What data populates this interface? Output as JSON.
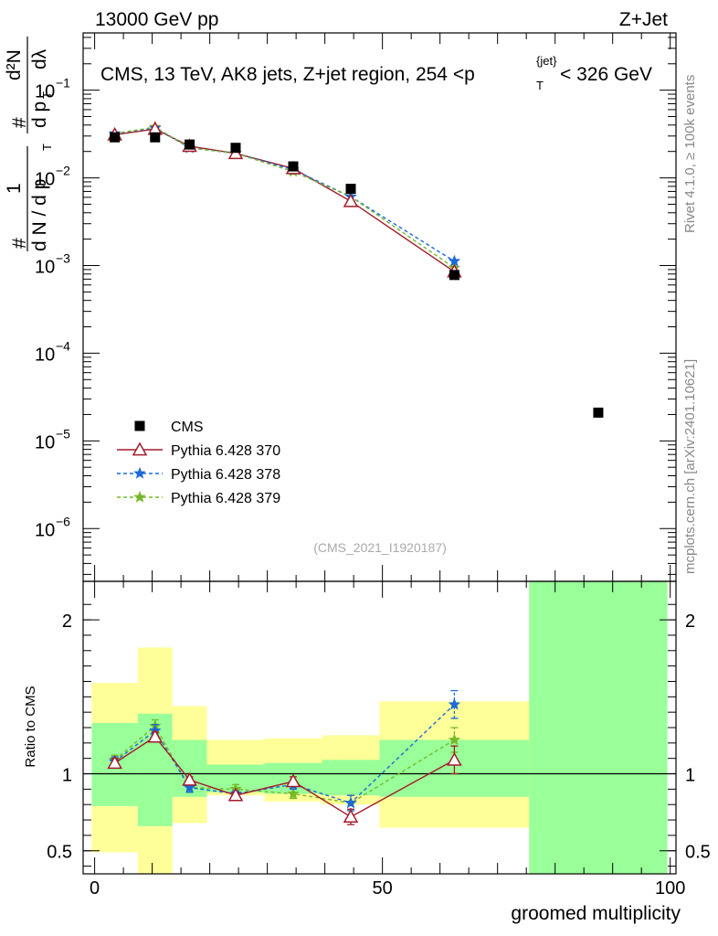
{
  "header": {
    "left": "13000 GeV pp",
    "right": "Z+Jet"
  },
  "side_text": {
    "rivet": "Rivet 4.1.0, ≥ 100k events",
    "mcplots": "mcplots.cern.ch [arXiv:2401.10621]"
  },
  "chart_data": [
    {
      "type": "scatter",
      "panel": "main",
      "title": "CMS, 13 TeV, AK8 jets, Z+jet region, 254 <p_T^{jet}< 326 GeV",
      "title_parts": {
        "main": "CMS, 13 TeV, AK8 jets, Z+jet region, 254 <p",
        "sub": "T",
        "sup": "{jet}",
        "tail": "< 326 GeV"
      },
      "ylabel": "1/dN/dpT dN/dpT dλ",
      "ylabel_parts": {
        "hash": "#",
        "one": "1",
        "denom": "d N / d p",
        "denom_sub": "T",
        "num": "d²N",
        "num_denom": "d p",
        "num_denom_sub": "T",
        "num_denom_tail": "dλ"
      },
      "yscale": "log",
      "ylim": [
        2.5e-07,
        0.45
      ],
      "yticks": [
        {
          "value": 1e-06,
          "base": "10",
          "exp": "−6"
        },
        {
          "value": 1e-05,
          "base": "10",
          "exp": "−5"
        },
        {
          "value": 0.0001,
          "base": "10",
          "exp": "−4"
        },
        {
          "value": 0.001,
          "base": "10",
          "exp": "−3"
        },
        {
          "value": 0.01,
          "base": "10",
          "exp": "−2"
        },
        {
          "value": 0.1,
          "base": "10",
          "exp": "−1"
        }
      ],
      "xlim": [
        -2,
        101
      ],
      "watermark": "(CMS_2021_I1920187)",
      "legend_position": "lower-left",
      "series": [
        {
          "name": "CMS",
          "kind": "data",
          "color": "#000000",
          "x": [
            3.5,
            10.5,
            16.5,
            24.5,
            34.5,
            44.5,
            62.5,
            87.5
          ],
          "y": [
            0.029,
            0.029,
            0.024,
            0.022,
            0.0135,
            0.0075,
            0.00078,
            2.1e-05
          ]
        },
        {
          "name": "Pythia 6.428 370",
          "kind": "mc",
          "color": "#a31b2c",
          "dash": "none",
          "marker": "triangle",
          "x": [
            3.5,
            10.5,
            16.5,
            24.5,
            34.5,
            44.5,
            62.5
          ],
          "y": [
            0.031,
            0.036,
            0.023,
            0.019,
            0.0128,
            0.0054,
            0.00085
          ]
        },
        {
          "name": "Pythia 6.428 378",
          "kind": "mc",
          "color": "#1a6ad8",
          "dash": "4,3",
          "marker": "star",
          "x": [
            3.5,
            10.5,
            16.5,
            24.5,
            34.5,
            44.5,
            62.5
          ],
          "y": [
            0.032,
            0.037,
            0.022,
            0.019,
            0.0124,
            0.0061,
            0.00112
          ]
        },
        {
          "name": "Pythia 6.428 379",
          "kind": "mc",
          "color": "#76b82a",
          "dash": "4,3",
          "marker": "star",
          "x": [
            3.5,
            10.5,
            16.5,
            24.5,
            34.5,
            44.5,
            62.5
          ],
          "y": [
            0.032,
            0.038,
            0.022,
            0.019,
            0.0118,
            0.0061,
            0.00094
          ]
        }
      ]
    },
    {
      "type": "line",
      "panel": "ratio",
      "ylabel": "Ratio to CMS",
      "xlabel": "groomed multiplicity",
      "ylim": [
        0.35,
        2.25
      ],
      "yticks": [
        {
          "value": 0.5,
          "label": "0.5"
        },
        {
          "value": 1,
          "label": "1"
        },
        {
          "value": 2,
          "label": "2"
        }
      ],
      "xlim": [
        -2,
        101
      ],
      "xticks": [
        {
          "value": 0,
          "label": "0"
        },
        {
          "value": 50,
          "label": "50"
        },
        {
          "value": 100,
          "label": "100"
        }
      ],
      "bands": [
        {
          "x0": -0.5,
          "x1": 7.5,
          "yellow": [
            0.49,
            1.59
          ],
          "green": [
            0.79,
            1.33
          ]
        },
        {
          "x0": 7.5,
          "x1": 13.5,
          "yellow": [
            0.35,
            1.82
          ],
          "green": [
            0.66,
            1.39
          ]
        },
        {
          "x0": 13.5,
          "x1": 19.5,
          "yellow": [
            0.68,
            1.44
          ],
          "green": [
            0.85,
            1.22
          ]
        },
        {
          "x0": 19.5,
          "x1": 29.5,
          "yellow": [
            0.86,
            1.22
          ],
          "green": [
            0.88,
            1.06
          ]
        },
        {
          "x0": 29.5,
          "x1": 39.5,
          "yellow": [
            0.82,
            1.23
          ],
          "green": [
            0.87,
            1.07
          ]
        },
        {
          "x0": 39.5,
          "x1": 49.5,
          "yellow": [
            0.8,
            1.25
          ],
          "green": [
            0.86,
            1.09
          ]
        },
        {
          "x0": 49.5,
          "x1": 75.5,
          "yellow": [
            0.65,
            1.47
          ],
          "green": [
            0.85,
            1.22
          ]
        },
        {
          "x0": 75.5,
          "x1": 99.5,
          "yellow": [
            0.35,
            2.25
          ],
          "green": [
            0.35,
            2.25
          ]
        }
      ],
      "series": [
        {
          "name": "Pythia 6.428 370",
          "color": "#a31b2c",
          "dash": "none",
          "marker": "triangle",
          "x": [
            3.5,
            10.5,
            16.5,
            24.5,
            34.5,
            44.5,
            62.5
          ],
          "y": [
            1.07,
            1.24,
            0.96,
            0.86,
            0.95,
            0.72,
            1.09
          ],
          "err": [
            0.03,
            0.03,
            0.02,
            0.02,
            0.03,
            0.05,
            0.09
          ]
        },
        {
          "name": "Pythia 6.428 378",
          "color": "#1a6ad8",
          "dash": "4,3",
          "marker": "star",
          "x": [
            3.5,
            10.5,
            16.5,
            24.5,
            34.5,
            44.5,
            62.5
          ],
          "y": [
            1.08,
            1.28,
            0.91,
            0.87,
            0.93,
            0.81,
            1.45
          ],
          "err": [
            0.03,
            0.04,
            0.03,
            0.02,
            0.03,
            0.05,
            0.09
          ]
        },
        {
          "name": "Pythia 6.428 379",
          "color": "#76b82a",
          "dash": "4,3",
          "marker": "star",
          "x": [
            3.5,
            10.5,
            16.5,
            24.5,
            34.5,
            44.5,
            62.5
          ],
          "y": [
            1.09,
            1.31,
            0.91,
            0.9,
            0.87,
            0.81,
            1.22
          ],
          "err": [
            0.03,
            0.04,
            0.03,
            0.03,
            0.03,
            0.05,
            0.08
          ]
        }
      ]
    }
  ]
}
